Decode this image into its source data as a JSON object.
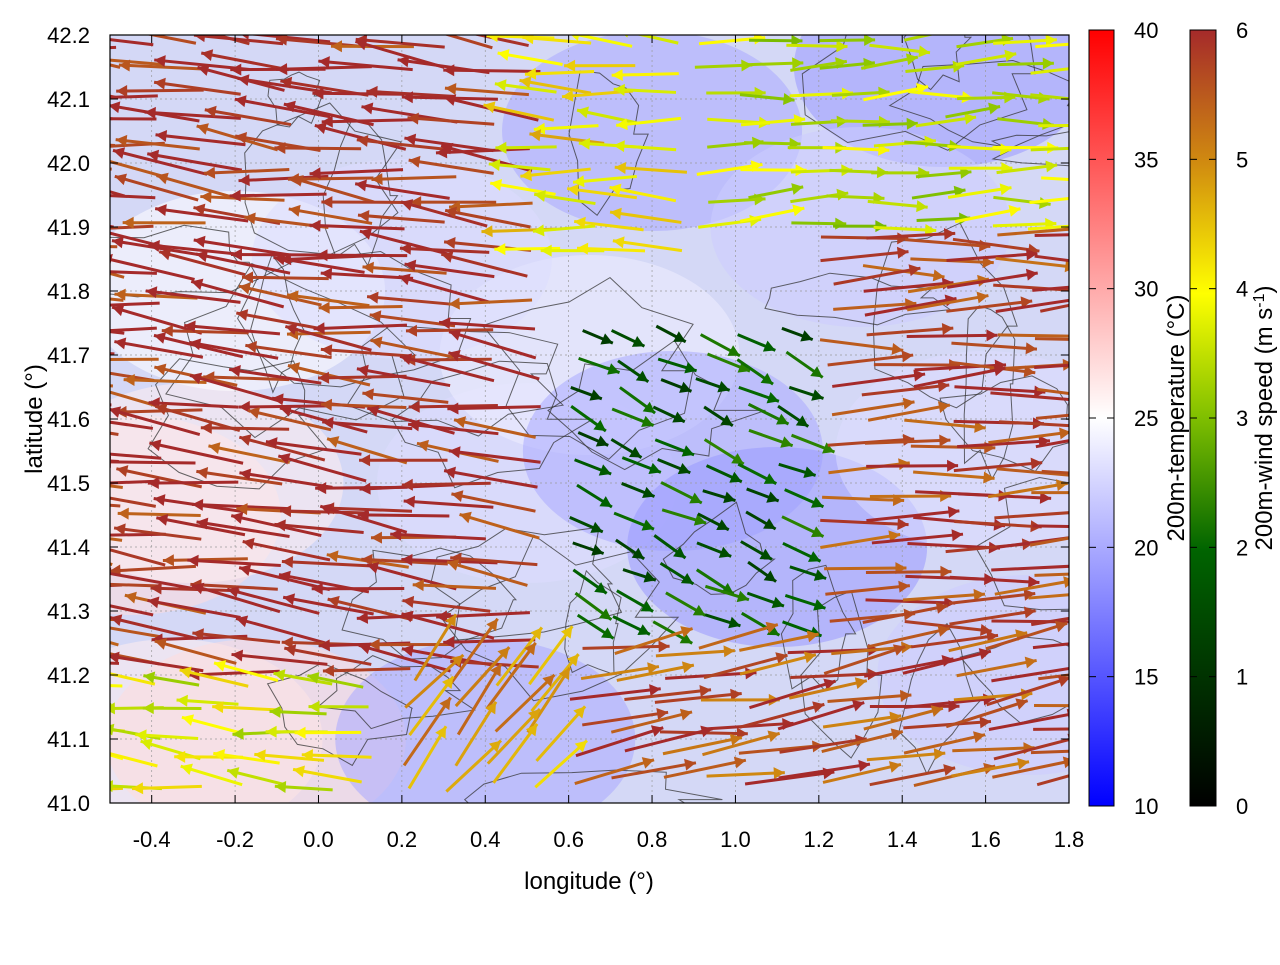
{
  "chart_data": {
    "type": "heatmap",
    "title": "",
    "xlabel": "longitude (°)",
    "ylabel": "latitude (°)",
    "xlim": [
      -0.5,
      1.8
    ],
    "ylim": [
      41.0,
      42.2
    ],
    "xticks": [
      -0.4,
      -0.2,
      0.0,
      0.2,
      0.4,
      0.6,
      0.8,
      1.0,
      1.2,
      1.4,
      1.6,
      1.8
    ],
    "xtick_labels": [
      "-0.4",
      "-0.2",
      "0.0",
      "0.2",
      "0.4",
      "0.6",
      "0.8",
      "1.0",
      "1.2",
      "1.4",
      "1.6",
      "1.8"
    ],
    "yticks": [
      41.0,
      41.1,
      41.2,
      41.3,
      41.4,
      41.5,
      41.6,
      41.7,
      41.8,
      41.9,
      42.0,
      42.1,
      42.2
    ],
    "ytick_labels": [
      "41.0",
      "41.1",
      "41.2",
      "41.3",
      "41.4",
      "41.5",
      "41.6",
      "41.7",
      "41.8",
      "41.9",
      "42.0",
      "42.1",
      "42.2"
    ],
    "grid": true,
    "temperature_colorbar": {
      "label": "200m-temperature (°C)",
      "range": [
        10,
        40
      ],
      "ticks": [
        10,
        15,
        20,
        25,
        30,
        35,
        40
      ],
      "tick_labels": [
        "10",
        "15",
        "20",
        "25",
        "30",
        "35",
        "40"
      ],
      "colors": [
        "#0000ff",
        "#ffffff",
        "#ff0000"
      ]
    },
    "wind_colorbar": {
      "label": "200m-wind speed (m s",
      "label_superscript": "-1",
      "label_suffix": ")",
      "range": [
        0,
        6
      ],
      "ticks": [
        0,
        1,
        2,
        3,
        4,
        5,
        6
      ],
      "tick_labels": [
        "0",
        "1",
        "2",
        "3",
        "4",
        "5",
        "6"
      ],
      "colors": [
        "#000000",
        "#006400",
        "#7fbf00",
        "#ffff00",
        "#d08a10",
        "#a52a2a"
      ]
    },
    "temperature_field": [
      {
        "lon": -0.45,
        "lat": 41.45,
        "temp": 27
      },
      {
        "lon": -0.3,
        "lat": 41.5,
        "temp": 26
      },
      {
        "lon": -0.35,
        "lat": 41.1,
        "temp": 26
      },
      {
        "lon": -0.15,
        "lat": 41.1,
        "temp": 27
      },
      {
        "lon": -0.2,
        "lat": 41.8,
        "temp": 25
      },
      {
        "lon": 0.4,
        "lat": 41.1,
        "temp": 20
      },
      {
        "lon": 0.5,
        "lat": 41.5,
        "temp": 23
      },
      {
        "lon": 0.65,
        "lat": 41.7,
        "temp": 24
      },
      {
        "lon": 0.85,
        "lat": 41.55,
        "temp": 20
      },
      {
        "lon": 1.1,
        "lat": 41.4,
        "temp": 19
      },
      {
        "lon": 0.8,
        "lat": 42.05,
        "temp": 20
      },
      {
        "lon": 1.5,
        "lat": 42.15,
        "temp": 19
      },
      {
        "lon": 1.3,
        "lat": 41.9,
        "temp": 22
      },
      {
        "lon": 1.6,
        "lat": 41.55,
        "temp": 23
      },
      {
        "lon": 1.7,
        "lat": 41.2,
        "temp": 22
      },
      {
        "lon": 0.2,
        "lat": 41.85,
        "temp": 23
      }
    ],
    "wind_regions": [
      {
        "lon": [
          -0.5,
          0.55
        ],
        "lat": [
          41.2,
          42.2
        ],
        "u": -1.0,
        "v": 0.12,
        "speed": 6.0
      },
      {
        "lon": [
          -0.5,
          0.2
        ],
        "lat": [
          41.0,
          41.2
        ],
        "u": -0.8,
        "v": 0.1,
        "speed": 3.8
      },
      {
        "lon": [
          0.2,
          0.6
        ],
        "lat": [
          41.0,
          41.2
        ],
        "u": 0.5,
        "v": 0.6,
        "speed": 4.8
      },
      {
        "lon": [
          0.55,
          0.9
        ],
        "lat": [
          41.85,
          42.2
        ],
        "u": -1.0,
        "v": 0.05,
        "speed": 4.2
      },
      {
        "lon": [
          0.9,
          1.8
        ],
        "lat": [
          41.9,
          42.2
        ],
        "u": 1.0,
        "v": 0.05,
        "speed": 3.5
      },
      {
        "lon": [
          0.6,
          1.2
        ],
        "lat": [
          41.25,
          41.75
        ],
        "u": 0.4,
        "v": -0.2,
        "speed": 1.8
      },
      {
        "lon": [
          1.2,
          1.8
        ],
        "lat": [
          41.25,
          41.9
        ],
        "u": 1.0,
        "v": 0.03,
        "speed": 5.8
      },
      {
        "lon": [
          0.6,
          1.8
        ],
        "lat": [
          41.0,
          41.25
        ],
        "u": 1.0,
        "v": 0.15,
        "speed": 5.6
      }
    ]
  }
}
